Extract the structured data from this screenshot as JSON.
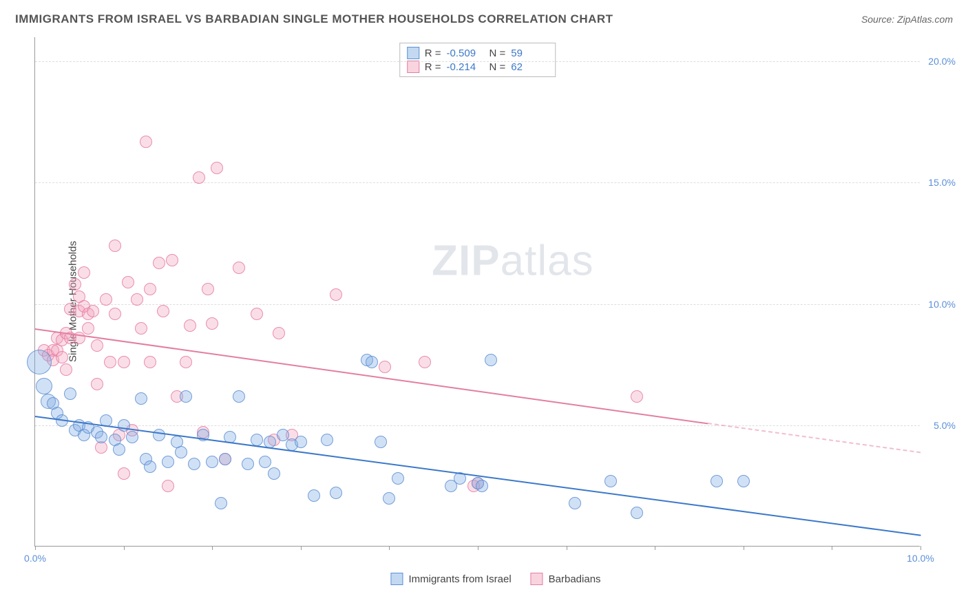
{
  "title": "IMMIGRANTS FROM ISRAEL VS BARBADIAN SINGLE MOTHER HOUSEHOLDS CORRELATION CHART",
  "source": "Source: ZipAtlas.com",
  "watermark": {
    "zip": "ZIP",
    "atlas": "atlas"
  },
  "chart": {
    "type": "scatter",
    "background_color": "#ffffff",
    "grid_color": "#dddddd",
    "axis_color": "#999999",
    "tick_color": "#5b8fd9",
    "label_color": "#444444",
    "ylabel": "Single Mother Households",
    "xlim": [
      0,
      10
    ],
    "ylim": [
      0,
      21
    ],
    "xticks": [
      0,
      1,
      2,
      3,
      4,
      5,
      6,
      7,
      8,
      9,
      10
    ],
    "xtick_labels": {
      "0": "0.0%",
      "10": "10.0%"
    },
    "yticks": [
      5,
      10,
      15,
      20
    ],
    "ytick_labels": {
      "5": "5.0%",
      "10": "10.0%",
      "15": "15.0%",
      "20": "20.0%"
    },
    "label_fontsize": 15,
    "tick_fontsize": 14,
    "title_fontsize": 17,
    "series": {
      "blue": {
        "label": "Immigrants from Israel",
        "fill": "rgba(123,170,227,0.35)",
        "stroke": "#5b8fd9",
        "R": "-0.509",
        "N": "59",
        "trend": {
          "x1": 0,
          "y1": 5.4,
          "x2": 10,
          "y2": 0.5,
          "color": "#3b78c9",
          "width": 2
        },
        "marker_radius": 9,
        "points": [
          {
            "x": 0.05,
            "y": 7.6,
            "r": 18
          },
          {
            "x": 0.1,
            "y": 6.6,
            "r": 12
          },
          {
            "x": 0.15,
            "y": 6.0,
            "r": 11
          },
          {
            "x": 0.2,
            "y": 5.9,
            "r": 9
          },
          {
            "x": 0.25,
            "y": 5.5,
            "r": 9
          },
          {
            "x": 0.3,
            "y": 5.2,
            "r": 9
          },
          {
            "x": 0.4,
            "y": 6.3,
            "r": 9
          },
          {
            "x": 0.45,
            "y": 4.8,
            "r": 9
          },
          {
            "x": 0.5,
            "y": 5.0,
            "r": 9
          },
          {
            "x": 0.55,
            "y": 4.6,
            "r": 9
          },
          {
            "x": 0.6,
            "y": 4.9,
            "r": 9
          },
          {
            "x": 0.7,
            "y": 4.7,
            "r": 9
          },
          {
            "x": 0.75,
            "y": 4.5,
            "r": 9
          },
          {
            "x": 0.8,
            "y": 5.2,
            "r": 9
          },
          {
            "x": 0.9,
            "y": 4.4,
            "r": 9
          },
          {
            "x": 0.95,
            "y": 4.0,
            "r": 9
          },
          {
            "x": 1.0,
            "y": 5.0,
            "r": 9
          },
          {
            "x": 1.1,
            "y": 4.5,
            "r": 9
          },
          {
            "x": 1.2,
            "y": 6.1,
            "r": 9
          },
          {
            "x": 1.25,
            "y": 3.6,
            "r": 9
          },
          {
            "x": 1.3,
            "y": 3.3,
            "r": 9
          },
          {
            "x": 1.4,
            "y": 4.6,
            "r": 9
          },
          {
            "x": 1.5,
            "y": 3.5,
            "r": 9
          },
          {
            "x": 1.6,
            "y": 4.3,
            "r": 9
          },
          {
            "x": 1.65,
            "y": 3.9,
            "r": 9
          },
          {
            "x": 1.7,
            "y": 6.2,
            "r": 9
          },
          {
            "x": 1.8,
            "y": 3.4,
            "r": 9
          },
          {
            "x": 1.9,
            "y": 4.6,
            "r": 9
          },
          {
            "x": 2.0,
            "y": 3.5,
            "r": 9
          },
          {
            "x": 2.1,
            "y": 1.8,
            "r": 9
          },
          {
            "x": 2.15,
            "y": 3.6,
            "r": 9
          },
          {
            "x": 2.2,
            "y": 4.5,
            "r": 9
          },
          {
            "x": 2.3,
            "y": 6.2,
            "r": 9
          },
          {
            "x": 2.4,
            "y": 3.4,
            "r": 9
          },
          {
            "x": 2.5,
            "y": 4.4,
            "r": 9
          },
          {
            "x": 2.6,
            "y": 3.5,
            "r": 9
          },
          {
            "x": 2.65,
            "y": 4.3,
            "r": 9
          },
          {
            "x": 2.7,
            "y": 3.0,
            "r": 9
          },
          {
            "x": 2.8,
            "y": 4.6,
            "r": 9
          },
          {
            "x": 2.9,
            "y": 4.2,
            "r": 9
          },
          {
            "x": 3.0,
            "y": 4.3,
            "r": 9
          },
          {
            "x": 3.15,
            "y": 2.1,
            "r": 9
          },
          {
            "x": 3.3,
            "y": 4.4,
            "r": 9
          },
          {
            "x": 3.4,
            "y": 2.2,
            "r": 9
          },
          {
            "x": 3.75,
            "y": 7.7,
            "r": 9
          },
          {
            "x": 3.8,
            "y": 7.6,
            "r": 9
          },
          {
            "x": 3.9,
            "y": 4.3,
            "r": 9
          },
          {
            "x": 4.0,
            "y": 2.0,
            "r": 9
          },
          {
            "x": 4.1,
            "y": 2.8,
            "r": 9
          },
          {
            "x": 4.7,
            "y": 2.5,
            "r": 9
          },
          {
            "x": 4.8,
            "y": 2.8,
            "r": 9
          },
          {
            "x": 5.0,
            "y": 2.6,
            "r": 9
          },
          {
            "x": 5.05,
            "y": 2.5,
            "r": 9
          },
          {
            "x": 5.15,
            "y": 7.7,
            "r": 9
          },
          {
            "x": 6.1,
            "y": 1.8,
            "r": 9
          },
          {
            "x": 6.5,
            "y": 2.7,
            "r": 9
          },
          {
            "x": 6.8,
            "y": 1.4,
            "r": 9
          },
          {
            "x": 7.7,
            "y": 2.7,
            "r": 9
          },
          {
            "x": 8.0,
            "y": 2.7,
            "r": 9
          }
        ]
      },
      "pink": {
        "label": "Barbadians",
        "fill": "rgba(242,160,185,0.35)",
        "stroke": "#e37ea0",
        "R": "-0.214",
        "N": "62",
        "trend": {
          "x1": 0,
          "y1": 9.0,
          "x2": 7.6,
          "y2": 5.1,
          "color": "#e37ea0",
          "width": 2
        },
        "trend_dashed": {
          "x1": 7.6,
          "y1": 5.1,
          "x2": 10,
          "y2": 3.9
        },
        "marker_radius": 9,
        "points": [
          {
            "x": 0.1,
            "y": 8.1,
            "r": 9
          },
          {
            "x": 0.15,
            "y": 7.9,
            "r": 9
          },
          {
            "x": 0.2,
            "y": 8.1,
            "r": 9
          },
          {
            "x": 0.2,
            "y": 7.7,
            "r": 9
          },
          {
            "x": 0.25,
            "y": 8.6,
            "r": 9
          },
          {
            "x": 0.25,
            "y": 8.1,
            "r": 9
          },
          {
            "x": 0.3,
            "y": 7.8,
            "r": 9
          },
          {
            "x": 0.3,
            "y": 8.5,
            "r": 9
          },
          {
            "x": 0.35,
            "y": 7.3,
            "r": 9
          },
          {
            "x": 0.35,
            "y": 8.8,
            "r": 9
          },
          {
            "x": 0.4,
            "y": 8.6,
            "r": 9
          },
          {
            "x": 0.4,
            "y": 9.8,
            "r": 9
          },
          {
            "x": 0.45,
            "y": 10.8,
            "r": 9
          },
          {
            "x": 0.5,
            "y": 10.3,
            "r": 9
          },
          {
            "x": 0.5,
            "y": 9.7,
            "r": 9
          },
          {
            "x": 0.5,
            "y": 8.6,
            "r": 9
          },
          {
            "x": 0.55,
            "y": 9.9,
            "r": 9
          },
          {
            "x": 0.55,
            "y": 11.3,
            "r": 9
          },
          {
            "x": 0.6,
            "y": 9.6,
            "r": 9
          },
          {
            "x": 0.6,
            "y": 9.0,
            "r": 9
          },
          {
            "x": 0.65,
            "y": 9.7,
            "r": 9
          },
          {
            "x": 0.7,
            "y": 8.3,
            "r": 9
          },
          {
            "x": 0.7,
            "y": 6.7,
            "r": 9
          },
          {
            "x": 0.75,
            "y": 4.1,
            "r": 9
          },
          {
            "x": 0.8,
            "y": 10.2,
            "r": 9
          },
          {
            "x": 0.85,
            "y": 7.6,
            "r": 9
          },
          {
            "x": 0.9,
            "y": 12.4,
            "r": 9
          },
          {
            "x": 0.9,
            "y": 9.6,
            "r": 9
          },
          {
            "x": 0.95,
            "y": 4.6,
            "r": 9
          },
          {
            "x": 1.0,
            "y": 7.6,
            "r": 9
          },
          {
            "x": 1.0,
            "y": 3.0,
            "r": 9
          },
          {
            "x": 1.05,
            "y": 10.9,
            "r": 9
          },
          {
            "x": 1.1,
            "y": 4.8,
            "r": 9
          },
          {
            "x": 1.15,
            "y": 10.2,
            "r": 9
          },
          {
            "x": 1.2,
            "y": 9.0,
            "r": 9
          },
          {
            "x": 1.25,
            "y": 16.7,
            "r": 9
          },
          {
            "x": 1.3,
            "y": 10.6,
            "r": 9
          },
          {
            "x": 1.3,
            "y": 7.6,
            "r": 9
          },
          {
            "x": 1.4,
            "y": 11.7,
            "r": 9
          },
          {
            "x": 1.45,
            "y": 9.7,
            "r": 9
          },
          {
            "x": 1.5,
            "y": 2.5,
            "r": 9
          },
          {
            "x": 1.55,
            "y": 11.8,
            "r": 9
          },
          {
            "x": 1.6,
            "y": 6.2,
            "r": 9
          },
          {
            "x": 1.7,
            "y": 7.6,
            "r": 9
          },
          {
            "x": 1.75,
            "y": 9.1,
            "r": 9
          },
          {
            "x": 1.85,
            "y": 15.2,
            "r": 9
          },
          {
            "x": 1.9,
            "y": 4.7,
            "r": 9
          },
          {
            "x": 1.95,
            "y": 10.6,
            "r": 9
          },
          {
            "x": 2.0,
            "y": 9.2,
            "r": 9
          },
          {
            "x": 2.05,
            "y": 15.6,
            "r": 9
          },
          {
            "x": 2.15,
            "y": 3.6,
            "r": 9
          },
          {
            "x": 2.3,
            "y": 11.5,
            "r": 9
          },
          {
            "x": 2.5,
            "y": 9.6,
            "r": 9
          },
          {
            "x": 2.7,
            "y": 4.4,
            "r": 9
          },
          {
            "x": 2.75,
            "y": 8.8,
            "r": 9
          },
          {
            "x": 2.9,
            "y": 4.6,
            "r": 9
          },
          {
            "x": 3.4,
            "y": 10.4,
            "r": 9
          },
          {
            "x": 3.95,
            "y": 7.4,
            "r": 9
          },
          {
            "x": 4.4,
            "y": 7.6,
            "r": 9
          },
          {
            "x": 4.95,
            "y": 2.5,
            "r": 9
          },
          {
            "x": 5.0,
            "y": 2.6,
            "r": 9
          },
          {
            "x": 6.8,
            "y": 6.2,
            "r": 9
          }
        ]
      }
    },
    "legend_top": {
      "r_label": "R =",
      "n_label": "N ="
    },
    "legend_bottom": {
      "items": [
        "blue",
        "pink"
      ]
    }
  }
}
